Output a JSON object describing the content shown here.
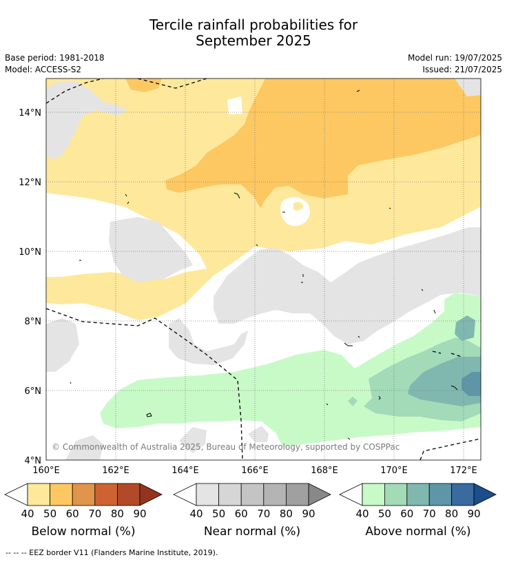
{
  "title_line1": "Tercile rainfall probabilities for",
  "title_line2": "September 2025",
  "base_period": "Base period: 1981-2018",
  "model": "Model: ACCESS-S2",
  "model_run": "Model run: 19/07/2025",
  "issued": "Issued: 21/07/2025",
  "lat_labels": [
    "14°N",
    "12°N",
    "10°N",
    "8°N",
    "6°N",
    "4°N"
  ],
  "lon_labels": [
    "160°E",
    "162°E",
    "164°E",
    "166°E",
    "168°E",
    "170°E",
    "172°E"
  ],
  "copyright": "© Commonwealth of Australia 2025, Bureau of Meteorology, supported by COSPPac",
  "footnote": "--  --  -- EEZ border V11 (Flanders Marine Institute, 2019).",
  "colorbars": [
    {
      "label": "Below normal (%)",
      "ticks": [
        "40",
        "50",
        "60",
        "70",
        "80",
        "90"
      ],
      "colors": [
        "#fee89c",
        "#fdc861",
        "#e0954a",
        "#cd6332",
        "#b04a28",
        "#95341e"
      ]
    },
    {
      "label": "Near normal (%)",
      "ticks": [
        "40",
        "50",
        "60",
        "70",
        "80",
        "90"
      ],
      "colors": [
        "#e4e4e4",
        "#d6d6d6",
        "#c4c4c4",
        "#b4b4b4",
        "#a0a0a0",
        "#888888"
      ]
    },
    {
      "label": "Above normal (%)",
      "ticks": [
        "40",
        "50",
        "60",
        "70",
        "80",
        "90"
      ],
      "colors": [
        "#c8fac8",
        "#a3dab8",
        "#80b8b0",
        "#5e96a8",
        "#3a6a9e",
        "#1c4d8c"
      ]
    }
  ]
}
